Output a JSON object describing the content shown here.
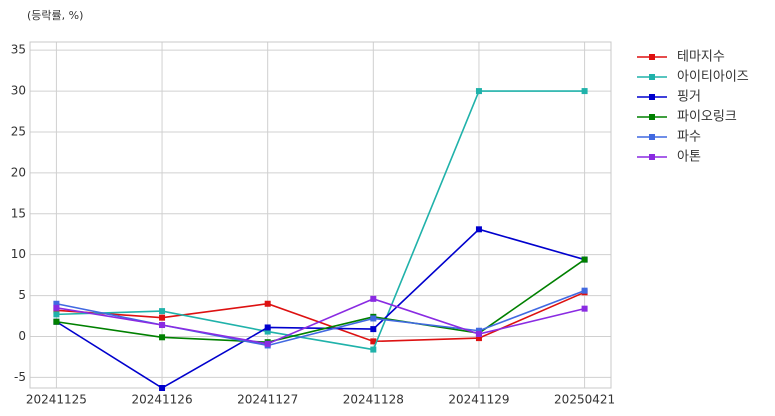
{
  "chart_data": {
    "type": "line",
    "y_label": "(등락률, %)",
    "categories": [
      "20241125",
      "20241126",
      "20241127",
      "20241128",
      "20241129",
      "20250421"
    ],
    "series": [
      {
        "name": "테마지수",
        "color": "#dd1111",
        "values": [
          3.2,
          2.3,
          4.0,
          -0.6,
          -0.2,
          5.4
        ]
      },
      {
        "name": "아이티아이즈",
        "color": "#20b2aa",
        "values": [
          2.7,
          3.1,
          0.6,
          -1.6,
          30,
          30
        ]
      },
      {
        "name": "핑거",
        "color": "#0000cd",
        "values": [
          1.8,
          -6.3,
          1.1,
          0.9,
          13.1,
          9.4
        ]
      },
      {
        "name": "파이오링크",
        "color": "#008000",
        "values": [
          1.8,
          -0.1,
          -0.7,
          2.4,
          0.4,
          9.4
        ]
      },
      {
        "name": "파수",
        "color": "#4169e1",
        "values": [
          4.0,
          1.4,
          -1.1,
          2.2,
          0.7,
          5.6
        ]
      },
      {
        "name": "아톤",
        "color": "#8a2be2",
        "values": [
          3.5,
          1.4,
          -0.9,
          4.6,
          0.3,
          3.4
        ]
      }
    ],
    "ylim": [
      -6.3,
      36
    ],
    "yticks": [
      -5,
      0,
      5,
      10,
      15,
      20,
      25,
      30,
      35
    ],
    "grid": true,
    "legend": "outside-upper-right"
  }
}
